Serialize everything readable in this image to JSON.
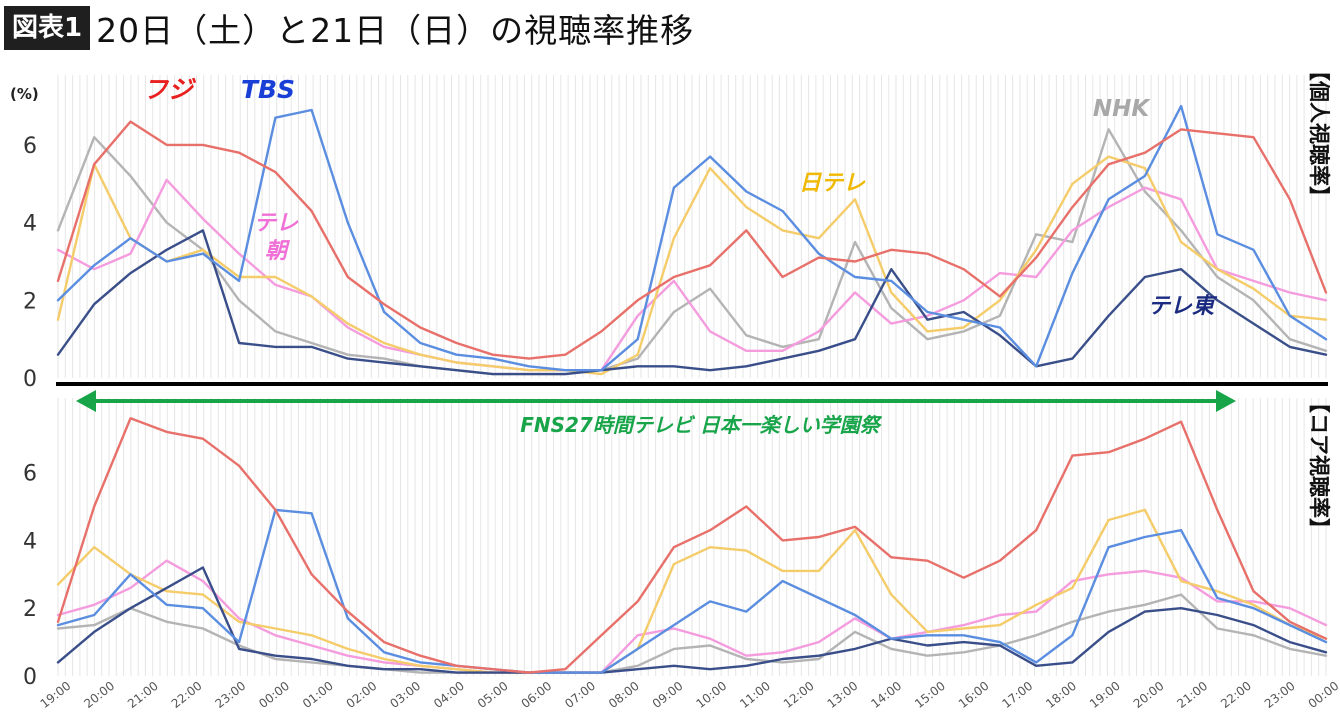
{
  "header": {
    "badge": "図表1",
    "title": "20日（土）と21日（日）の視聴率推移"
  },
  "annotations": {
    "top_right_label": "【個人視聴率】",
    "bottom_right_label": "【コア視聴率】",
    "banner": "FNS27時間テレビ 日本一楽しい学園祭",
    "unit": "(%)"
  },
  "colors": {
    "フジ": "#e8706a",
    "TBS": "#5b8ee0",
    "日テレ": "#f5cc6a",
    "テレ朝": "#f49cde",
    "NHK": "#b4b4b4",
    "テレ東": "#3a4f8a",
    "banner": "#18a54a"
  },
  "chart_data": [
    {
      "type": "line",
      "title": "",
      "right_label": "【個人視聴率】",
      "x_ticks": [
        "19:00",
        "20:00",
        "21:00",
        "22:00",
        "23:00",
        "00:00",
        "01:00",
        "02:00",
        "03:00",
        "04:00",
        "05:00",
        "06:00",
        "07:00",
        "08:00",
        "09:00",
        "10:00",
        "11:00",
        "12:00",
        "13:00",
        "14:00",
        "15:00",
        "16:00",
        "17:00",
        "18:00",
        "19:00",
        "20:00",
        "21:00",
        "22:00",
        "23:00",
        "00:00"
      ],
      "y_ticks": [
        0,
        2,
        4,
        6
      ],
      "ylim": [
        0,
        7.8
      ],
      "ylabel": "(%)",
      "grid": true,
      "series_labels": [
        {
          "name": "フジ",
          "text_color": "#e82020"
        },
        {
          "name": "TBS",
          "text_color": "#1a3fd6"
        },
        {
          "name": "テレ朝",
          "text_color": "#f070d8"
        },
        {
          "name": "日テレ",
          "text_color": "#f0b800"
        },
        {
          "name": "NHK",
          "text_color": "#a8a8a8"
        },
        {
          "name": "テレ東",
          "text_color": "#1a2a80"
        }
      ],
      "series": [
        {
          "name": "フジ",
          "values": [
            2.5,
            5.5,
            6.6,
            6.0,
            6.0,
            5.8,
            5.3,
            4.3,
            2.6,
            1.9,
            1.3,
            0.9,
            0.6,
            0.5,
            0.6,
            1.2,
            2.0,
            2.6,
            2.9,
            3.8,
            2.6,
            3.1,
            3.0,
            3.3,
            3.2,
            2.8,
            2.1,
            3.1,
            4.4,
            5.5,
            5.8,
            6.4,
            6.3,
            6.2,
            4.6,
            2.2
          ]
        },
        {
          "name": "TBS",
          "values": [
            2.0,
            2.9,
            3.6,
            3.0,
            3.2,
            2.5,
            6.7,
            6.9,
            4.0,
            1.7,
            0.9,
            0.6,
            0.5,
            0.3,
            0.2,
            0.2,
            1.0,
            4.9,
            5.7,
            4.8,
            4.3,
            3.2,
            2.6,
            2.5,
            1.7,
            1.5,
            1.3,
            0.3,
            2.7,
            4.6,
            5.2,
            7.0,
            3.7,
            3.3,
            1.6,
            1.0
          ]
        },
        {
          "name": "日テレ",
          "values": [
            1.5,
            5.5,
            3.6,
            3.0,
            3.3,
            2.6,
            2.6,
            2.1,
            1.4,
            0.9,
            0.6,
            0.4,
            0.3,
            0.2,
            0.2,
            0.1,
            0.6,
            3.6,
            5.4,
            4.4,
            3.8,
            3.6,
            4.6,
            2.2,
            1.2,
            1.3,
            2.0,
            3.3,
            5.0,
            5.7,
            5.4,
            3.5,
            2.8,
            2.3,
            1.6,
            1.5
          ]
        },
        {
          "name": "テレ朝",
          "values": [
            3.3,
            2.8,
            3.2,
            5.1,
            4.1,
            3.2,
            2.4,
            2.1,
            1.3,
            0.8,
            0.6,
            0.4,
            0.3,
            0.2,
            0.2,
            0.2,
            1.6,
            2.5,
            1.2,
            0.7,
            0.7,
            1.2,
            2.2,
            1.4,
            1.6,
            2.0,
            2.7,
            2.6,
            3.8,
            4.4,
            4.9,
            4.6,
            2.8,
            2.5,
            2.2,
            2.0
          ]
        },
        {
          "name": "NHK",
          "values": [
            3.8,
            6.2,
            5.2,
            4.0,
            3.3,
            2.0,
            1.2,
            0.9,
            0.6,
            0.5,
            0.3,
            0.2,
            0.1,
            0.1,
            0.1,
            0.2,
            0.5,
            1.7,
            2.3,
            1.1,
            0.8,
            1.0,
            3.5,
            1.8,
            1.0,
            1.2,
            1.6,
            3.7,
            3.5,
            6.4,
            4.8,
            3.8,
            2.6,
            2.0,
            1.0,
            0.7
          ]
        },
        {
          "name": "テレ東",
          "values": [
            0.6,
            1.9,
            2.7,
            3.3,
            3.8,
            0.9,
            0.8,
            0.8,
            0.5,
            0.4,
            0.3,
            0.2,
            0.1,
            0.1,
            0.1,
            0.2,
            0.3,
            0.3,
            0.2,
            0.3,
            0.5,
            0.7,
            1.0,
            2.8,
            1.5,
            1.7,
            1.1,
            0.3,
            0.5,
            1.6,
            2.6,
            2.8,
            2.0,
            1.4,
            0.8,
            0.6
          ]
        }
      ]
    },
    {
      "type": "line",
      "title": "",
      "right_label": "【コア視聴率】",
      "x_ticks": [
        "19:00",
        "20:00",
        "21:00",
        "22:00",
        "23:00",
        "00:00",
        "01:00",
        "02:00",
        "03:00",
        "04:00",
        "05:00",
        "06:00",
        "07:00",
        "08:00",
        "09:00",
        "10:00",
        "11:00",
        "12:00",
        "13:00",
        "14:00",
        "15:00",
        "16:00",
        "17:00",
        "18:00",
        "19:00",
        "20:00",
        "21:00",
        "22:00",
        "23:00",
        "00:00"
      ],
      "y_ticks": [
        0,
        2,
        4,
        6
      ],
      "ylim": [
        0,
        8.2
      ],
      "grid": true,
      "series": [
        {
          "name": "フジ",
          "values": [
            1.6,
            5.0,
            7.6,
            7.2,
            7.0,
            6.2,
            4.9,
            3.0,
            1.9,
            1.0,
            0.6,
            0.3,
            0.2,
            0.1,
            0.2,
            1.2,
            2.2,
            3.8,
            4.3,
            5.0,
            4.0,
            4.1,
            4.4,
            3.5,
            3.4,
            2.9,
            3.4,
            4.3,
            6.5,
            6.6,
            7.0,
            7.5,
            4.9,
            2.5,
            1.6,
            1.1
          ]
        },
        {
          "name": "TBS",
          "values": [
            1.5,
            1.8,
            3.0,
            2.1,
            2.0,
            1.0,
            4.9,
            4.8,
            1.7,
            0.7,
            0.4,
            0.3,
            0.2,
            0.1,
            0.1,
            0.1,
            0.8,
            1.5,
            2.2,
            1.9,
            2.8,
            2.3,
            1.8,
            1.1,
            1.2,
            1.2,
            1.0,
            0.4,
            1.2,
            3.8,
            4.1,
            4.3,
            2.3,
            2.0,
            1.5,
            1.0
          ]
        },
        {
          "name": "日テレ",
          "values": [
            2.7,
            3.8,
            3.0,
            2.5,
            2.4,
            1.6,
            1.4,
            1.2,
            0.8,
            0.5,
            0.3,
            0.2,
            0.1,
            0.1,
            0.1,
            0.1,
            0.8,
            3.3,
            3.8,
            3.7,
            3.1,
            3.1,
            4.3,
            2.4,
            1.3,
            1.4,
            1.5,
            2.1,
            2.6,
            4.6,
            4.9,
            2.8,
            2.5,
            2.1,
            1.5,
            1.1
          ]
        },
        {
          "name": "テレ朝",
          "values": [
            1.8,
            2.1,
            2.6,
            3.4,
            2.8,
            1.7,
            1.2,
            0.9,
            0.6,
            0.4,
            0.3,
            0.2,
            0.1,
            0.1,
            0.1,
            0.1,
            1.2,
            1.4,
            1.1,
            0.6,
            0.7,
            1.0,
            1.7,
            1.1,
            1.3,
            1.5,
            1.8,
            1.9,
            2.8,
            3.0,
            3.1,
            2.9,
            2.2,
            2.2,
            2.0,
            1.5
          ]
        },
        {
          "name": "NHK",
          "values": [
            1.4,
            1.5,
            2.0,
            1.6,
            1.4,
            0.9,
            0.5,
            0.4,
            0.3,
            0.2,
            0.1,
            0.1,
            0.1,
            0.1,
            0.1,
            0.1,
            0.3,
            0.8,
            0.9,
            0.5,
            0.4,
            0.5,
            1.3,
            0.8,
            0.6,
            0.7,
            0.9,
            1.2,
            1.6,
            1.9,
            2.1,
            2.4,
            1.4,
            1.2,
            0.8,
            0.6
          ]
        },
        {
          "name": "テレ東",
          "values": [
            0.4,
            1.3,
            2.0,
            2.6,
            3.2,
            0.8,
            0.6,
            0.5,
            0.3,
            0.2,
            0.2,
            0.1,
            0.1,
            0.1,
            0.1,
            0.1,
            0.2,
            0.3,
            0.2,
            0.3,
            0.5,
            0.6,
            0.8,
            1.1,
            0.9,
            1.0,
            0.9,
            0.3,
            0.4,
            1.3,
            1.9,
            2.0,
            1.8,
            1.5,
            1.0,
            0.7
          ]
        }
      ]
    }
  ]
}
